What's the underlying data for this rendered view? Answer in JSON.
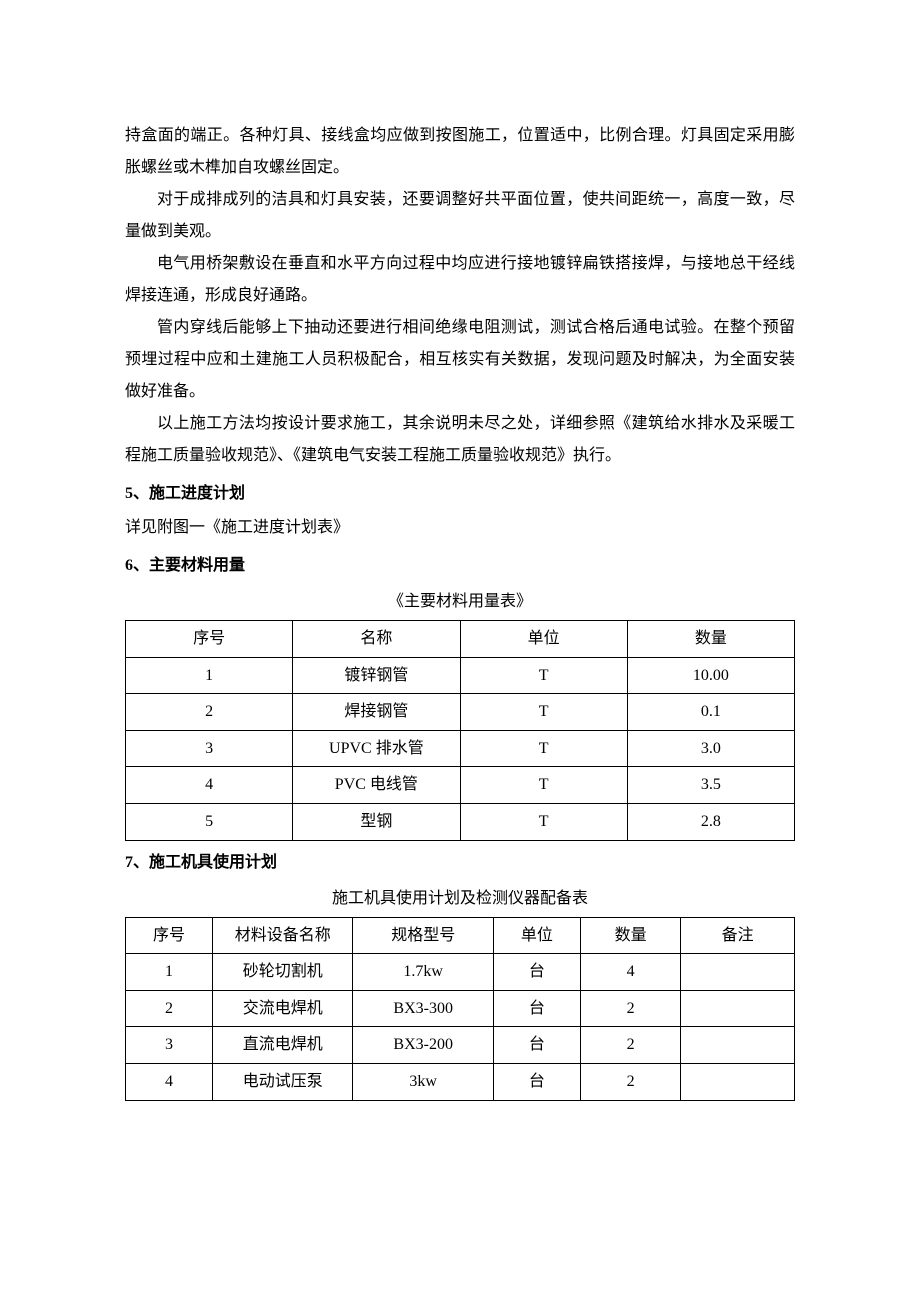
{
  "paragraphs": {
    "p1": "持盒面的端正。各种灯具、接线盒均应做到按图施工，位置适中，比例合理。灯具固定采用膨胀螺丝或木榫加自攻螺丝固定。",
    "p2": "对于成排成列的洁具和灯具安装，还要调整好共平面位置，使共间距统一，高度一致，尽量做到美观。",
    "p3": "电气用桥架敷设在垂直和水平方向过程中均应进行接地镀锌扁铁搭接焊，与接地总干经线焊接连通，形成良好通路。",
    "p4": "管内穿线后能够上下抽动还要进行相间绝缘电阻测试，测试合格后通电试验。在整个预留预埋过程中应和土建施工人员积极配合，相互核实有关数据，发现问题及时解决，为全面安装做好准备。",
    "p5": "以上施工方法均按设计要求施工，其余说明未尽之处，详细参照《建筑给水排水及采暖工程施工质量验收规范》、《建筑电气安装工程施工质量验收规范》执行。"
  },
  "sections": {
    "h5": "5、施工进度计划",
    "h5_note": "详见附图一《施工进度计划表》",
    "h6": "6、主要材料用量",
    "h7": "7、施工机具使用计划"
  },
  "table1": {
    "title": "《主要材料用量表》",
    "columns": [
      "序号",
      "名称",
      "单位",
      "数量"
    ],
    "rows": [
      [
        "1",
        "镀锌钢管",
        "T",
        "10.00"
      ],
      [
        "2",
        "焊接钢管",
        "T",
        "0.1"
      ],
      [
        "3",
        "UPVC 排水管",
        "T",
        "3.0"
      ],
      [
        "4",
        "PVC 电线管",
        "T",
        "3.5"
      ],
      [
        "5",
        "型钢",
        "T",
        "2.8"
      ]
    ]
  },
  "table2": {
    "title": "施工机具使用计划及检测仪器配备表",
    "columns": [
      "序号",
      "材料设备名称",
      "规格型号",
      "单位",
      "数量",
      "备注"
    ],
    "rows": [
      [
        "1",
        "砂轮切割机",
        "1.7kw",
        "台",
        "4",
        ""
      ],
      [
        "2",
        "交流电焊机",
        "BX3-300",
        "台",
        "2",
        ""
      ],
      [
        "3",
        "直流电焊机",
        "BX3-200",
        "台",
        "2",
        ""
      ],
      [
        "4",
        "电动试压泵",
        "3kw",
        "台",
        "2",
        ""
      ]
    ]
  }
}
